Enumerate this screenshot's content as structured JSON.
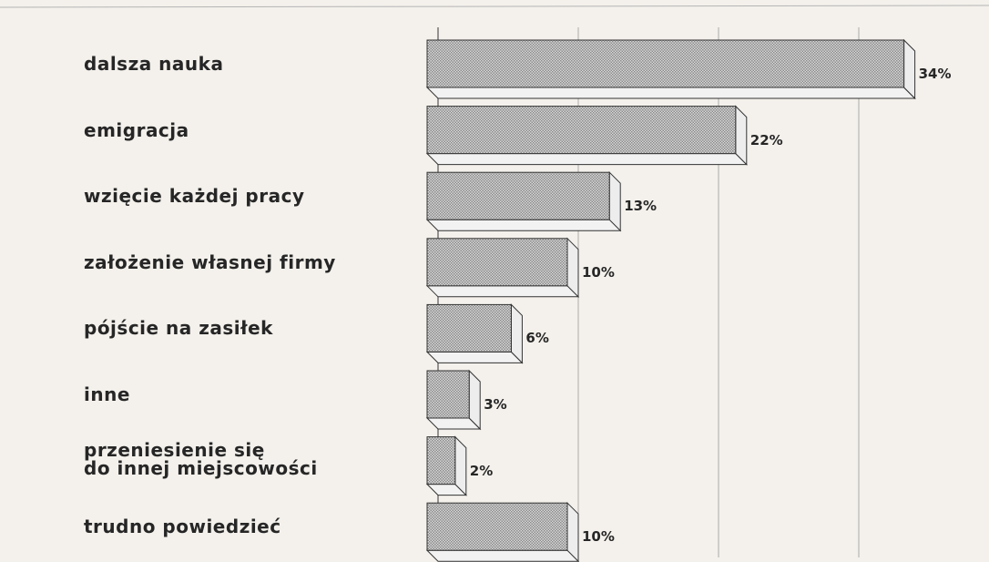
{
  "chart_data": {
    "type": "bar",
    "orientation": "horizontal",
    "categories": [
      "dalsza nauka",
      "emigracja",
      "wzięcie każdej pracy",
      "założenie własnej firmy",
      "pójście na zasiłek",
      "inne",
      "przeniesienie się\ndo innej miejscowości",
      "trudno powiedzieć"
    ],
    "values": [
      34,
      22,
      13,
      10,
      6,
      3,
      2,
      10
    ],
    "value_labels": [
      "34%",
      "22%",
      "13%",
      "10%",
      "6%",
      "3%",
      "2%",
      "10%"
    ],
    "color": "#8a8a8a",
    "xlim": [
      0,
      40
    ],
    "xticks": [
      0,
      10,
      20,
      30
    ],
    "grid": true
  }
}
